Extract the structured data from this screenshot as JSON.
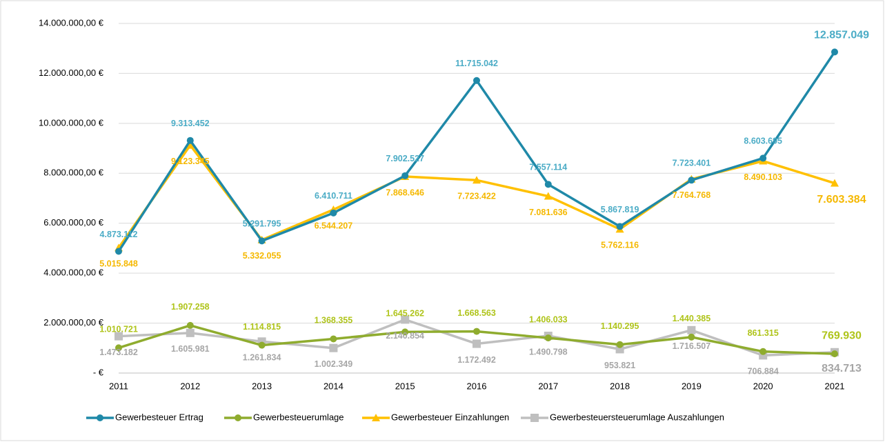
{
  "chart_data": {
    "type": "line",
    "categories": [
      "2011",
      "2012",
      "2013",
      "2014",
      "2015",
      "2016",
      "2017",
      "2018",
      "2019",
      "2020",
      "2021"
    ],
    "ylim": [
      0,
      14000000
    ],
    "yticks": [
      {
        "value": 0,
        "label": "-   €"
      },
      {
        "value": 2000000,
        "label": "2.000.000,00 €"
      },
      {
        "value": 4000000,
        "label": "4.000.000,00 €"
      },
      {
        "value": 6000000,
        "label": "6.000.000,00 €"
      },
      {
        "value": 8000000,
        "label": "8.000.000,00 €"
      },
      {
        "value": 10000000,
        "label": "10.000.000,00 €"
      },
      {
        "value": 12000000,
        "label": "12.000.000,00 €"
      },
      {
        "value": 14000000,
        "label": "14.000.000,00 €"
      }
    ],
    "grid": true,
    "legend": "bottom",
    "series": [
      {
        "name": "Gewerbesteuer Ertrag",
        "color": "#1f89a8",
        "label_color": "#4bacc6",
        "marker": "circle",
        "values": [
          4873112,
          9313452,
          5291795,
          6410711,
          7902527,
          11715042,
          7557114,
          5867819,
          7723401,
          8603695,
          12857049
        ],
        "value_labels": [
          "4.873.112",
          "9.313.452",
          "5.291.795",
          "6.410.711",
          "7.902.527",
          "11.715.042",
          "7.557.114",
          "5.867.819",
          "7.723.401",
          "8.603.695",
          "12.857.049"
        ]
      },
      {
        "name": "Gewerbesteuerumlage",
        "color": "#8fac2e",
        "label_color": "#afc41a",
        "marker": "circle",
        "values": [
          1010721,
          1907258,
          1114815,
          1368355,
          1645262,
          1668563,
          1406033,
          1140295,
          1440385,
          861315,
          769930
        ],
        "value_labels": [
          "1.010.721",
          "1.907.258",
          "1.114.815",
          "1.368.355",
          "1.645.262",
          "1.668.563",
          "1.406.033",
          "1.140.295",
          "1.440.385",
          "861.315",
          "769.930"
        ]
      },
      {
        "name": "Gewerbesteuer Einzahlungen",
        "color": "#ffc000",
        "label_color": "#f5b800",
        "marker": "triangle",
        "values": [
          5015848,
          9123345,
          5332055,
          6544207,
          7868646,
          7723422,
          7081636,
          5762116,
          7764768,
          8490103,
          7603384
        ],
        "value_labels": [
          "5.015.848",
          "9.123.345",
          "5.332.055",
          "6.544.207",
          "7.868.646",
          "7.723.422",
          "7.081.636",
          "5.762.116",
          "7.764.768",
          "8.490.103",
          "7.603.384"
        ]
      },
      {
        "name": "Gewerbesteuersteuerumlage Auszahlungen",
        "color": "#bfbfbf",
        "label_color": "#a6a6a6",
        "marker": "square",
        "values": [
          1473182,
          1605981,
          1261834,
          1002349,
          2140854,
          1172492,
          1490798,
          953821,
          1716507,
          706884,
          834713
        ],
        "value_labels": [
          "1.473.182",
          "1.605.981",
          "1.261.834",
          "1.002.349",
          "2.140.854",
          "1.172.492",
          "1.490.798",
          "953.821",
          "1.716.507",
          "706.884",
          "834.713"
        ]
      }
    ]
  }
}
